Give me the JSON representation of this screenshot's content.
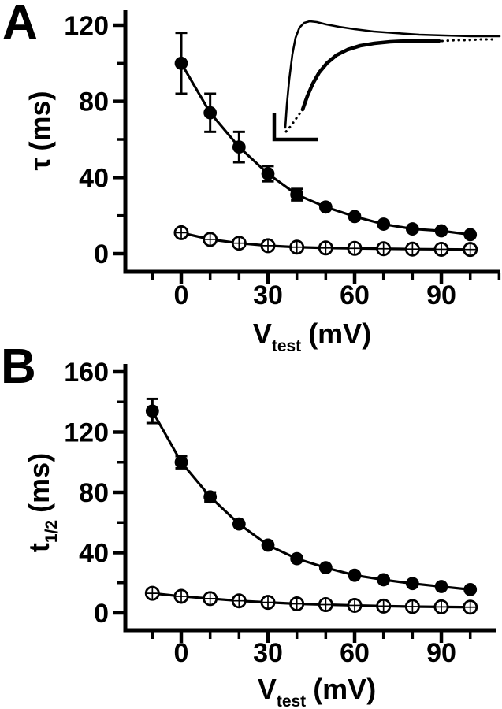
{
  "page": {
    "background": "#ffffff"
  },
  "colors": {
    "ink": "#000000"
  },
  "chart_data": [
    {
      "type": "scatter",
      "panel_label": "A",
      "title": "",
      "ylabel": {
        "symbol": "τ",
        "sub": "",
        "unit": "(ms)",
        "text": "τ (ms)"
      },
      "xlabel": {
        "symbol": "V",
        "sub": "test",
        "unit": "(mV)",
        "text": "V test (mV)"
      },
      "x_axis": {
        "major_ticks": [
          0,
          30,
          60,
          90
        ],
        "minor_ticks": [
          -10,
          10,
          20,
          40,
          50,
          70,
          80,
          100,
          110
        ],
        "range": [
          -19,
          110
        ]
      },
      "y_axis": {
        "major_ticks": [
          0,
          40,
          80,
          120
        ],
        "minor_ticks": [
          20,
          60,
          100
        ],
        "range": [
          0,
          137
        ]
      },
      "grid": false,
      "legend": "none",
      "series": [
        {
          "name": "slow-component-filled-circles",
          "marker": "filled-circle",
          "x": [
            0,
            10,
            20,
            30,
            40,
            50,
            60,
            70,
            80,
            90,
            100
          ],
          "y": [
            100,
            74,
            56,
            42,
            31,
            24.5,
            19.5,
            15.5,
            13,
            12,
            10
          ],
          "err": [
            16,
            10,
            8,
            4,
            3,
            0,
            0,
            0,
            0,
            0,
            0
          ]
        },
        {
          "name": "fast-component-open-crossed-circles",
          "marker": "open-circle-cross",
          "x": [
            0,
            10,
            20,
            30,
            40,
            50,
            60,
            70,
            80,
            90,
            100
          ],
          "y": [
            11,
            7.5,
            5.5,
            4.2,
            3.4,
            3,
            2.8,
            2.6,
            2.4,
            2.3,
            2.2
          ],
          "err": [
            0,
            0,
            0,
            0,
            0,
            0,
            0,
            0,
            0,
            0,
            0
          ]
        }
      ],
      "inset": {
        "description": "representative current traces with L-shaped scale bar",
        "traces": [
          {
            "name": "fast-activating-trace",
            "style": "solid-thin",
            "points": [
              [
                362,
                162
              ],
              [
                364,
                133
              ],
              [
                367,
                101
              ],
              [
                371,
                69
              ],
              [
                375,
                48
              ],
              [
                380,
                35
              ],
              [
                386,
                29
              ],
              [
                393,
                27
              ],
              [
                402,
                28
              ],
              [
                414,
                31
              ],
              [
                430,
                34
              ],
              [
                450,
                37
              ],
              [
                474,
                40
              ],
              [
                502,
                42
              ],
              [
                532,
                44
              ],
              [
                564,
                45
              ],
              [
                598,
                46
              ],
              [
                634,
                46
              ]
            ]
          },
          {
            "name": "slow-trace-dotted-onset",
            "style": "dotted",
            "points": [
              [
                363,
                167
              ],
              [
                369,
                160
              ],
              [
                374,
                153
              ],
              [
                379,
                146
              ],
              [
                384,
                139
              ]
            ]
          },
          {
            "name": "slow-activating-trace",
            "style": "solid-thick",
            "points": [
              [
                384,
                139
              ],
              [
                390,
                122
              ],
              [
                397,
                106
              ],
              [
                405,
                92
              ],
              [
                415,
                80
              ],
              [
                427,
                70
              ],
              [
                441,
                63
              ],
              [
                457,
                58
              ],
              [
                475,
                55
              ],
              [
                495,
                53
              ],
              [
                517,
                52
              ],
              [
                539,
                52
              ],
              [
                557,
                52
              ]
            ]
          },
          {
            "name": "slow-trace-dotted-tail",
            "style": "dotted",
            "points": [
              [
                561,
                52
              ],
              [
                577,
                51
              ],
              [
                593,
                51
              ],
              [
                609,
                50
              ],
              [
                625,
                50
              ]
            ]
          }
        ],
        "scale_bar_points": [
          [
            348,
            143
          ],
          [
            348,
            177
          ],
          [
            403,
            177
          ]
        ]
      }
    },
    {
      "type": "scatter",
      "panel_label": "B",
      "title": "",
      "ylabel": {
        "symbol": "t",
        "sub": "1/2",
        "unit": "(ms)",
        "text": "t 1/2 (ms)"
      },
      "xlabel": {
        "symbol": "V",
        "sub": "test",
        "unit": "(mV)",
        "text": "V test (mV)"
      },
      "x_axis": {
        "major_ticks": [
          0,
          30,
          60,
          90
        ],
        "minor_ticks": [
          -10,
          10,
          20,
          40,
          50,
          70,
          80,
          100
        ],
        "range": [
          -19,
          109
        ]
      },
      "y_axis": {
        "major_ticks": [
          0,
          40,
          80,
          120,
          160
        ],
        "minor_ticks": [
          20,
          60,
          100,
          140
        ],
        "range": [
          0,
          165
        ]
      },
      "grid": false,
      "legend": "none",
      "series": [
        {
          "name": "slow-component-filled-circles",
          "marker": "filled-circle",
          "x": [
            -10,
            0,
            10,
            20,
            30,
            40,
            50,
            60,
            70,
            80,
            90,
            100
          ],
          "y": [
            134,
            100,
            77,
            59,
            45,
            36,
            30,
            25,
            22,
            19.5,
            17.5,
            15.5
          ],
          "err": [
            8,
            4,
            3,
            0,
            0,
            0,
            0,
            0,
            0,
            0,
            0,
            0
          ]
        },
        {
          "name": "fast-component-open-crossed-circles",
          "marker": "open-circle-cross",
          "x": [
            -10,
            0,
            10,
            20,
            30,
            40,
            50,
            60,
            70,
            80,
            90,
            100
          ],
          "y": [
            13,
            11,
            9.5,
            8,
            7,
            6,
            5.5,
            5,
            4.5,
            4.2,
            4,
            3.8
          ],
          "err": [
            0,
            0,
            0,
            0,
            0,
            0,
            0,
            0,
            0,
            0,
            0,
            0
          ]
        }
      ]
    }
  ]
}
